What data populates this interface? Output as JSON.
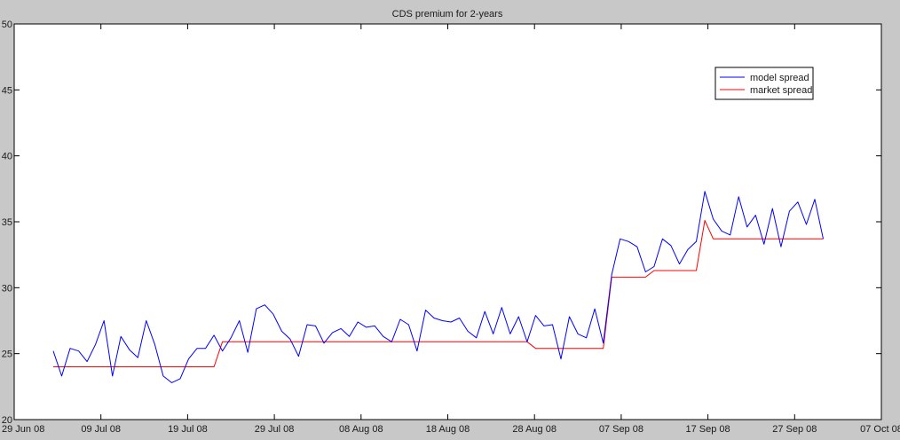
{
  "chart_data": {
    "type": "line",
    "title": "CDS premium for 2-years",
    "xlabel": "",
    "ylabel": "",
    "ylim": [
      20,
      50
    ],
    "y_ticks": [
      20,
      25,
      30,
      35,
      40,
      45,
      50
    ],
    "x_tick_labels": [
      "29 Jun 08",
      "09 Jul 08",
      "19 Jul 08",
      "29 Jul 08",
      "08 Aug 08",
      "18 Aug 08",
      "28 Aug 08",
      "07 Sep 08",
      "17 Sep 08",
      "27 Sep 08",
      "07 Oct 08"
    ],
    "x_range": [
      "2008-06-29",
      "2008-10-07"
    ],
    "grid": false,
    "legend_position": "top-right",
    "series": [
      {
        "name": "model spread",
        "color": "#0000ff",
        "values": [
          25.2,
          23.3,
          25.4,
          25.2,
          24.4,
          25.7,
          27.5,
          23.3,
          26.3,
          25.3,
          24.7,
          27.5,
          25.7,
          23.3,
          22.8,
          23.1,
          24.6,
          25.4,
          25.4,
          26.4,
          25.2,
          26.2,
          27.5,
          25.1,
          28.4,
          28.7,
          28.0,
          26.7,
          26.1,
          24.8,
          27.2,
          27.1,
          25.8,
          26.6,
          26.9,
          26.3,
          27.4,
          27.0,
          27.1,
          26.3,
          25.9,
          27.6,
          27.2,
          25.2,
          28.3,
          27.7,
          27.5,
          27.4,
          27.7,
          26.7,
          26.2,
          28.2,
          26.5,
          28.5,
          26.5,
          27.8,
          25.9,
          27.9,
          27.1,
          27.2,
          24.6,
          27.8,
          26.5,
          26.2,
          28.4,
          25.8,
          31.0,
          33.7,
          33.5,
          33.1,
          31.2,
          31.6,
          33.7,
          33.2,
          31.8,
          32.9,
          33.5,
          37.3,
          35.2,
          34.3,
          34.0,
          36.9,
          34.6,
          35.5,
          33.3,
          36.0,
          33.1,
          35.8,
          36.5,
          34.8,
          36.7,
          33.7
        ]
      },
      {
        "name": "market spread",
        "color": "#ff0000",
        "values": [
          24.0,
          24.0,
          24.0,
          24.0,
          24.0,
          24.0,
          24.0,
          24.0,
          24.0,
          24.0,
          24.0,
          24.0,
          24.0,
          24.0,
          24.0,
          24.0,
          24.0,
          24.0,
          24.0,
          24.0,
          25.9,
          25.9,
          25.9,
          25.9,
          25.9,
          25.9,
          25.9,
          25.9,
          25.9,
          25.9,
          25.9,
          25.9,
          25.9,
          25.9,
          25.9,
          25.9,
          25.9,
          25.9,
          25.9,
          25.9,
          25.9,
          25.9,
          25.9,
          25.9,
          25.9,
          25.9,
          25.9,
          25.9,
          25.9,
          25.9,
          25.9,
          25.9,
          25.9,
          25.9,
          25.9,
          25.9,
          25.9,
          25.4,
          25.4,
          25.4,
          25.4,
          25.4,
          25.4,
          25.4,
          25.4,
          25.4,
          30.8,
          30.8,
          30.8,
          30.8,
          30.8,
          31.3,
          31.3,
          31.3,
          31.3,
          31.3,
          31.3,
          35.1,
          33.7,
          33.7,
          33.7,
          33.7,
          33.7,
          33.7,
          33.7,
          33.7,
          33.7,
          33.7,
          33.7,
          33.7,
          33.7,
          33.7
        ]
      }
    ]
  }
}
